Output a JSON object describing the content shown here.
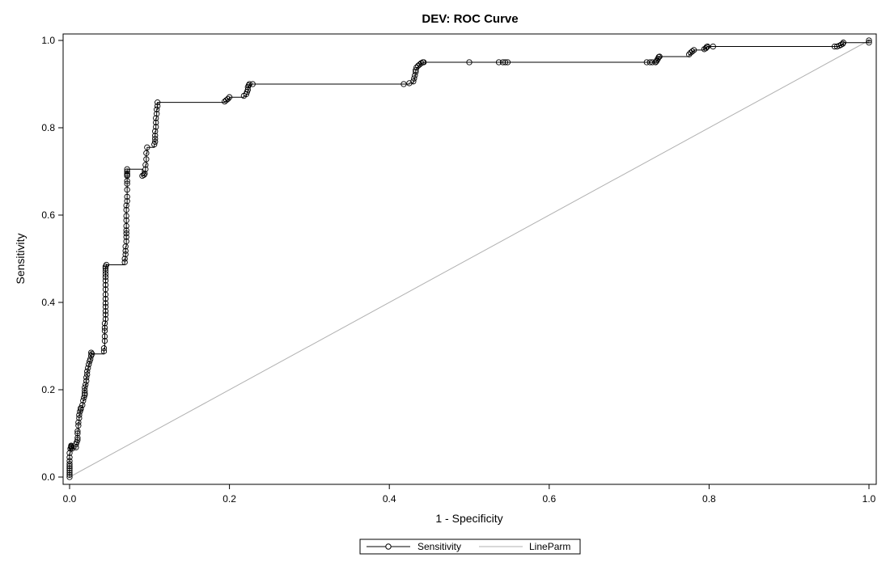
{
  "chart_data": {
    "type": "line",
    "title": "DEV: ROC Curve",
    "xlabel": "1 - Specificity",
    "ylabel": "Sensitivity",
    "xlim": [
      0,
      1
    ],
    "ylim": [
      0,
      1
    ],
    "xticks": [
      "0.0",
      "0.2",
      "0.4",
      "0.6",
      "0.8",
      "1.0"
    ],
    "yticks": [
      "0.0",
      "0.2",
      "0.4",
      "0.6",
      "0.8",
      "1.0"
    ],
    "grid": false,
    "legend": {
      "placement": "bottom-center",
      "entries": [
        "Sensitivity",
        "LineParm"
      ]
    },
    "series": [
      {
        "name": "Sensitivity",
        "color": "#000000",
        "marker": "circle",
        "x": [
          0.0,
          0.0,
          0.0,
          0.0,
          0.0,
          0.0,
          0.0,
          0.0,
          0.0,
          0.0,
          0.001,
          0.002,
          0.002,
          0.002,
          0.003,
          0.008,
          0.008,
          0.009,
          0.01,
          0.01,
          0.01,
          0.01,
          0.011,
          0.011,
          0.012,
          0.012,
          0.013,
          0.014,
          0.014,
          0.016,
          0.017,
          0.018,
          0.019,
          0.019,
          0.019,
          0.019,
          0.02,
          0.021,
          0.021,
          0.022,
          0.022,
          0.023,
          0.024,
          0.025,
          0.026,
          0.027,
          0.027,
          0.028,
          0.043,
          0.043,
          0.044,
          0.044,
          0.044,
          0.044,
          0.044,
          0.045,
          0.045,
          0.045,
          0.045,
          0.045,
          0.045,
          0.045,
          0.045,
          0.045,
          0.045,
          0.045,
          0.045,
          0.045,
          0.045,
          0.045,
          0.046,
          0.069,
          0.069,
          0.07,
          0.07,
          0.07,
          0.071,
          0.071,
          0.071,
          0.071,
          0.071,
          0.071,
          0.071,
          0.071,
          0.071,
          0.072,
          0.072,
          0.072,
          0.072,
          0.072,
          0.072,
          0.072,
          0.072,
          0.072,
          0.072,
          0.091,
          0.093,
          0.094,
          0.095,
          0.095,
          0.096,
          0.096,
          0.097,
          0.106,
          0.107,
          0.107,
          0.107,
          0.107,
          0.108,
          0.108,
          0.108,
          0.109,
          0.109,
          0.11,
          0.11,
          0.194,
          0.196,
          0.198,
          0.2,
          0.218,
          0.221,
          0.222,
          0.223,
          0.223,
          0.224,
          0.225,
          0.229,
          0.418,
          0.425,
          0.43,
          0.431,
          0.432,
          0.433,
          0.433,
          0.434,
          0.436,
          0.438,
          0.44,
          0.442,
          0.443,
          0.5,
          0.537,
          0.542,
          0.545,
          0.548,
          0.722,
          0.726,
          0.729,
          0.733,
          0.734,
          0.735,
          0.736,
          0.737,
          0.738,
          0.775,
          0.777,
          0.779,
          0.781,
          0.794,
          0.796,
          0.797,
          0.798,
          0.805,
          0.957,
          0.96,
          0.963,
          0.965,
          0.967,
          0.968,
          1.0,
          1.0
        ],
        "y": [
          0.0,
          0.005,
          0.01,
          0.015,
          0.02,
          0.025,
          0.03,
          0.037,
          0.045,
          0.055,
          0.065,
          0.07,
          0.068,
          0.072,
          0.065,
          0.068,
          0.075,
          0.08,
          0.085,
          0.09,
          0.1,
          0.105,
          0.118,
          0.125,
          0.135,
          0.142,
          0.15,
          0.155,
          0.158,
          0.165,
          0.175,
          0.182,
          0.188,
          0.192,
          0.198,
          0.205,
          0.212,
          0.22,
          0.228,
          0.235,
          0.242,
          0.25,
          0.258,
          0.265,
          0.27,
          0.278,
          0.285,
          0.282,
          0.288,
          0.295,
          0.312,
          0.322,
          0.335,
          0.342,
          0.352,
          0.362,
          0.372,
          0.38,
          0.39,
          0.398,
          0.408,
          0.418,
          0.43,
          0.44,
          0.45,
          0.458,
          0.465,
          0.472,
          0.478,
          0.482,
          0.486,
          0.492,
          0.5,
          0.51,
          0.518,
          0.528,
          0.54,
          0.55,
          0.558,
          0.565,
          0.575,
          0.588,
          0.598,
          0.612,
          0.622,
          0.632,
          0.642,
          0.658,
          0.672,
          0.678,
          0.69,
          0.692,
          0.695,
          0.7,
          0.705,
          0.69,
          0.692,
          0.695,
          0.705,
          0.715,
          0.728,
          0.742,
          0.755,
          0.762,
          0.768,
          0.775,
          0.782,
          0.792,
          0.802,
          0.812,
          0.822,
          0.832,
          0.842,
          0.85,
          0.858,
          0.86,
          0.863,
          0.866,
          0.87,
          0.873,
          0.877,
          0.882,
          0.887,
          0.893,
          0.897,
          0.9,
          0.9,
          0.9,
          0.902,
          0.906,
          0.913,
          0.92,
          0.928,
          0.932,
          0.938,
          0.942,
          0.945,
          0.948,
          0.95,
          0.95,
          0.95,
          0.95,
          0.95,
          0.95,
          0.95,
          0.95,
          0.95,
          0.95,
          0.95,
          0.952,
          0.955,
          0.958,
          0.962,
          0.963,
          0.968,
          0.972,
          0.975,
          0.978,
          0.98,
          0.982,
          0.985,
          0.986,
          0.986,
          0.986,
          0.986,
          0.988,
          0.99,
          0.992,
          0.995,
          1.0,
          0.995
        ]
      },
      {
        "name": "LineParm",
        "color": "#b0b0b0",
        "marker": "none",
        "x": [
          0,
          1
        ],
        "y": [
          0,
          1
        ]
      }
    ]
  }
}
